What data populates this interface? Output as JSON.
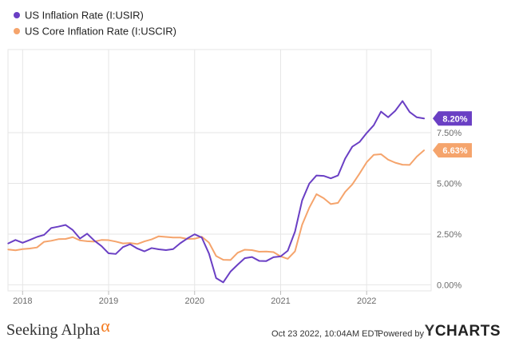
{
  "chart_data": {
    "type": "line",
    "title": "",
    "xlabel": "",
    "ylabel": "",
    "x_range": [
      2017.83,
      2022.75
    ],
    "ylim": [
      -0.3,
      11.6
    ],
    "grid": true,
    "legend_position": "top-left",
    "x_ticks": [
      {
        "value": 2018,
        "label": "2018"
      },
      {
        "value": 2019,
        "label": "2019"
      },
      {
        "value": 2020,
        "label": "2020"
      },
      {
        "value": 2021,
        "label": "2021"
      },
      {
        "value": 2022,
        "label": "2022"
      }
    ],
    "y_ticks": [
      {
        "value": 0,
        "label": "0.00%"
      },
      {
        "value": 2.5,
        "label": "2.50%"
      },
      {
        "value": 5,
        "label": "5.00%"
      },
      {
        "value": 7.5,
        "label": "7.50%"
      }
    ],
    "series": [
      {
        "name": "US Inflation Rate (I:USIR)",
        "color": "#6a3fc4",
        "end_label": "8.20%",
        "points": [
          [
            2017.833,
            2.04
          ],
          [
            2017.917,
            2.21
          ],
          [
            2018.0,
            2.07
          ],
          [
            2018.083,
            2.21
          ],
          [
            2018.167,
            2.36
          ],
          [
            2018.25,
            2.46
          ],
          [
            2018.333,
            2.8
          ],
          [
            2018.417,
            2.87
          ],
          [
            2018.5,
            2.95
          ],
          [
            2018.583,
            2.7
          ],
          [
            2018.667,
            2.28
          ],
          [
            2018.75,
            2.52
          ],
          [
            2018.833,
            2.18
          ],
          [
            2018.917,
            1.91
          ],
          [
            2019.0,
            1.55
          ],
          [
            2019.083,
            1.52
          ],
          [
            2019.167,
            1.86
          ],
          [
            2019.25,
            2.0
          ],
          [
            2019.333,
            1.79
          ],
          [
            2019.417,
            1.65
          ],
          [
            2019.5,
            1.81
          ],
          [
            2019.583,
            1.75
          ],
          [
            2019.667,
            1.71
          ],
          [
            2019.75,
            1.76
          ],
          [
            2019.833,
            2.05
          ],
          [
            2019.917,
            2.29
          ],
          [
            2020.0,
            2.49
          ],
          [
            2020.083,
            2.33
          ],
          [
            2020.167,
            1.54
          ],
          [
            2020.25,
            0.33
          ],
          [
            2020.333,
            0.12
          ],
          [
            2020.417,
            0.65
          ],
          [
            2020.5,
            0.99
          ],
          [
            2020.583,
            1.31
          ],
          [
            2020.667,
            1.37
          ],
          [
            2020.75,
            1.18
          ],
          [
            2020.833,
            1.17
          ],
          [
            2020.917,
            1.36
          ],
          [
            2021.0,
            1.4
          ],
          [
            2021.083,
            1.68
          ],
          [
            2021.167,
            2.62
          ],
          [
            2021.25,
            4.16
          ],
          [
            2021.333,
            4.99
          ],
          [
            2021.417,
            5.39
          ],
          [
            2021.5,
            5.37
          ],
          [
            2021.583,
            5.25
          ],
          [
            2021.667,
            5.39
          ],
          [
            2021.75,
            6.22
          ],
          [
            2021.833,
            6.81
          ],
          [
            2021.917,
            7.04
          ],
          [
            2022.0,
            7.48
          ],
          [
            2022.083,
            7.87
          ],
          [
            2022.167,
            8.54
          ],
          [
            2022.25,
            8.26
          ],
          [
            2022.333,
            8.58
          ],
          [
            2022.417,
            9.06
          ],
          [
            2022.5,
            8.52
          ],
          [
            2022.583,
            8.26
          ],
          [
            2022.667,
            8.2
          ]
        ]
      },
      {
        "name": "US Core Inflation Rate (I:USCIR)",
        "color": "#f5a46c",
        "end_label": "6.63%",
        "points": [
          [
            2017.833,
            1.74
          ],
          [
            2017.917,
            1.7
          ],
          [
            2018.0,
            1.76
          ],
          [
            2018.083,
            1.79
          ],
          [
            2018.167,
            1.84
          ],
          [
            2018.25,
            2.12
          ],
          [
            2018.333,
            2.17
          ],
          [
            2018.417,
            2.25
          ],
          [
            2018.5,
            2.26
          ],
          [
            2018.583,
            2.35
          ],
          [
            2018.667,
            2.19
          ],
          [
            2018.75,
            2.15
          ],
          [
            2018.833,
            2.13
          ],
          [
            2018.917,
            2.21
          ],
          [
            2019.0,
            2.2
          ],
          [
            2019.083,
            2.13
          ],
          [
            2019.167,
            2.04
          ],
          [
            2019.25,
            2.06
          ],
          [
            2019.333,
            2.01
          ],
          [
            2019.417,
            2.14
          ],
          [
            2019.5,
            2.24
          ],
          [
            2019.583,
            2.39
          ],
          [
            2019.667,
            2.36
          ],
          [
            2019.75,
            2.33
          ],
          [
            2019.833,
            2.33
          ],
          [
            2019.917,
            2.26
          ],
          [
            2020.0,
            2.27
          ],
          [
            2020.083,
            2.37
          ],
          [
            2020.167,
            2.08
          ],
          [
            2020.25,
            1.42
          ],
          [
            2020.333,
            1.23
          ],
          [
            2020.417,
            1.22
          ],
          [
            2020.5,
            1.58
          ],
          [
            2020.583,
            1.73
          ],
          [
            2020.667,
            1.71
          ],
          [
            2020.75,
            1.63
          ],
          [
            2020.833,
            1.64
          ],
          [
            2020.917,
            1.61
          ],
          [
            2021.0,
            1.4
          ],
          [
            2021.083,
            1.28
          ],
          [
            2021.167,
            1.65
          ],
          [
            2021.25,
            2.96
          ],
          [
            2021.333,
            3.8
          ],
          [
            2021.417,
            4.47
          ],
          [
            2021.5,
            4.27
          ],
          [
            2021.583,
            3.98
          ],
          [
            2021.667,
            4.04
          ],
          [
            2021.75,
            4.58
          ],
          [
            2021.833,
            4.95
          ],
          [
            2021.917,
            5.48
          ],
          [
            2022.0,
            6.04
          ],
          [
            2022.083,
            6.41
          ],
          [
            2022.167,
            6.44
          ],
          [
            2022.25,
            6.17
          ],
          [
            2022.333,
            6.02
          ],
          [
            2022.417,
            5.92
          ],
          [
            2022.5,
            5.91
          ],
          [
            2022.583,
            6.32
          ],
          [
            2022.667,
            6.63
          ]
        ]
      }
    ]
  },
  "footer": {
    "brand": "Seeking Alpha",
    "brand_symbol": "α",
    "timestamp": "Oct 23 2022, 10:04AM EDT.",
    "powered_by": "Powered by",
    "ycharts_y": "Y",
    "ycharts_rest": "CHARTS"
  }
}
